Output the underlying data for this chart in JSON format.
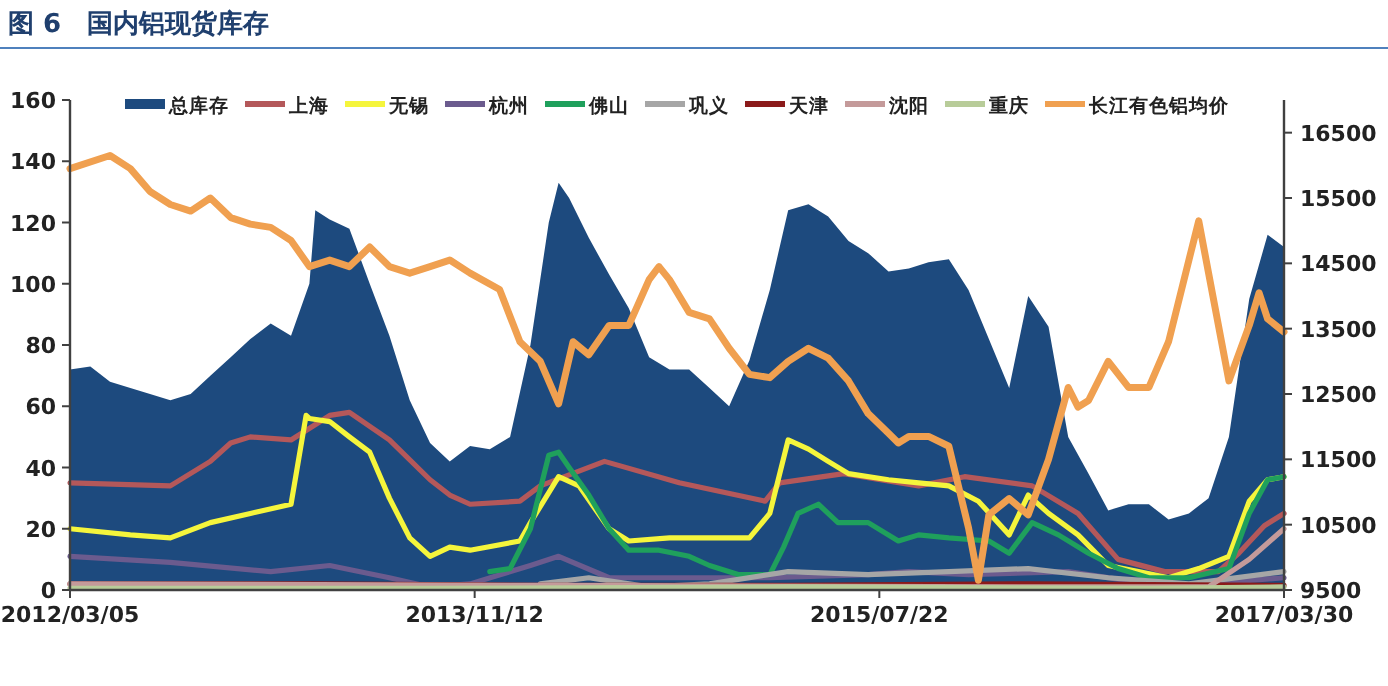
{
  "chart_data": {
    "type": "line",
    "title": "图 6　国内铝现货库存",
    "legend": "top",
    "xlim": [
      "2012-03-05",
      "2017-03-30"
    ],
    "xticks": [
      {
        "value": "2012-03-05",
        "label": "2012/03/05"
      },
      {
        "value": "2013-11-12",
        "label": "2013/11/12"
      },
      {
        "value": "2015-07-22",
        "label": "2015/07/22"
      },
      {
        "value": "2017-03-30",
        "label": "2017/03/30"
      }
    ],
    "ylim": [
      0,
      160
    ],
    "yticks": [
      0,
      20,
      40,
      60,
      80,
      100,
      120,
      140,
      160
    ],
    "y2lim": [
      9500,
      17000
    ],
    "y2ticks": [
      9500,
      10500,
      11500,
      12500,
      13500,
      14500,
      15500,
      16500
    ],
    "series": [
      {
        "name": "总库存",
        "type": "area",
        "color": "#1d4a7e",
        "x": [
          "2012-03-05",
          "2012-04-05",
          "2012-05-05",
          "2012-06-05",
          "2012-07-05",
          "2012-08-05",
          "2012-09-05",
          "2012-10-05",
          "2012-11-05",
          "2012-12-05",
          "2013-01-05",
          "2013-02-05",
          "2013-03-05",
          "2013-03-14",
          "2013-04-05",
          "2013-05-05",
          "2013-06-05",
          "2013-07-05",
          "2013-08-05",
          "2013-09-05",
          "2013-10-05",
          "2013-11-05",
          "2013-12-05",
          "2014-01-05",
          "2014-02-05",
          "2014-03-05",
          "2014-03-20",
          "2014-04-05",
          "2014-05-05",
          "2014-06-05",
          "2014-07-05",
          "2014-08-05",
          "2014-09-05",
          "2014-10-05",
          "2014-11-05",
          "2014-12-05",
          "2015-01-05",
          "2015-02-05",
          "2015-03-05",
          "2015-04-05",
          "2015-05-05",
          "2015-06-05",
          "2015-07-05",
          "2015-08-05",
          "2015-09-05",
          "2015-10-05",
          "2015-11-05",
          "2015-12-05",
          "2016-01-05",
          "2016-02-05",
          "2016-03-05",
          "2016-04-05",
          "2016-05-05",
          "2016-06-05",
          "2016-07-05",
          "2016-08-05",
          "2016-09-05",
          "2016-10-05",
          "2016-11-05",
          "2016-12-05",
          "2017-01-05",
          "2017-02-05",
          "2017-03-05",
          "2017-03-30"
        ],
        "values": [
          72,
          73,
          68,
          66,
          64,
          62,
          64,
          70,
          76,
          82,
          87,
          83,
          100,
          124,
          121,
          118,
          100,
          83,
          62,
          48,
          42,
          47,
          46,
          50,
          80,
          120,
          133,
          128,
          115,
          103,
          92,
          76,
          72,
          72,
          66,
          60,
          75,
          98,
          124,
          126,
          122,
          114,
          110,
          104,
          105,
          107,
          108,
          98,
          82,
          66,
          96,
          86,
          50,
          38,
          26,
          28,
          28,
          23,
          25,
          30,
          50,
          95,
          116,
          112
        ]
      },
      {
        "name": "上海",
        "type": "line",
        "color": "#b4585a",
        "x": [
          "2012-03-05",
          "2012-08-05",
          "2012-10-05",
          "2012-11-05",
          "2012-12-05",
          "2013-02-05",
          "2013-04-05",
          "2013-05-05",
          "2013-07-05",
          "2013-09-05",
          "2013-10-05",
          "2013-11-05",
          "2014-01-20",
          "2014-02-20",
          "2014-03-29",
          "2014-05-29",
          "2014-09-20",
          "2015-01-29",
          "2015-02-20",
          "2015-05-29",
          "2015-09-20",
          "2015-11-29",
          "2016-03-11",
          "2016-05-20",
          "2016-07-20",
          "2016-09-29",
          "2016-12-20",
          "2017-01-20",
          "2017-02-28",
          "2017-03-30"
        ],
        "values": [
          35,
          34,
          42,
          48,
          50,
          49,
          57,
          58,
          49,
          36,
          31,
          28,
          29,
          34,
          37,
          42,
          35,
          29,
          35,
          38,
          34,
          37,
          34,
          25,
          10,
          6,
          6,
          12,
          21,
          25
        ]
      },
      {
        "name": "无锡",
        "type": "line",
        "color": "#f5f53c",
        "x": [
          "2012-03-05",
          "2012-06-05",
          "2012-08-05",
          "2012-10-05",
          "2012-12-05",
          "2013-02-05",
          "2013-02-28",
          "2013-03-05",
          "2013-04-05",
          "2013-05-05",
          "2013-06-05",
          "2013-07-05",
          "2013-08-05",
          "2013-09-05",
          "2013-10-05",
          "2013-11-05",
          "2014-01-20",
          "2014-02-05",
          "2014-03-20",
          "2014-04-20",
          "2014-06-05",
          "2014-07-05",
          "2014-09-05",
          "2014-11-05",
          "2015-01-05",
          "2015-02-05",
          "2015-03-05",
          "2015-04-05",
          "2015-05-05",
          "2015-06-05",
          "2015-08-05",
          "2015-09-20",
          "2015-11-05",
          "2015-12-20",
          "2016-02-05",
          "2016-03-05",
          "2016-04-05",
          "2016-05-20",
          "2016-07-05",
          "2016-08-20",
          "2016-10-05",
          "2016-11-20",
          "2017-01-05",
          "2017-02-05",
          "2017-03-05",
          "2017-03-30"
        ],
        "values": [
          20,
          18,
          17,
          22,
          25,
          28,
          57,
          56,
          55,
          50,
          45,
          30,
          17,
          11,
          14,
          13,
          16,
          22,
          37,
          34,
          20,
          16,
          17,
          17,
          17,
          25,
          49,
          46,
          42,
          38,
          36,
          35,
          34,
          29,
          18,
          31,
          25,
          18,
          8,
          6,
          4,
          7,
          11,
          29,
          36,
          37
        ]
      },
      {
        "name": "杭州",
        "type": "line",
        "color": "#6b5b8e",
        "x": [
          "2012-03-05",
          "2012-08-05",
          "2013-01-05",
          "2013-04-05",
          "2013-07-05",
          "2013-09-05",
          "2013-11-05",
          "2014-02-05",
          "2014-03-20",
          "2014-06-05",
          "2014-09-05",
          "2015-02-05",
          "2015-07-05",
          "2015-09-05",
          "2015-12-05",
          "2016-05-05",
          "2016-10-05",
          "2017-03-30"
        ],
        "values": [
          11,
          9,
          6,
          8,
          4,
          1,
          2,
          8,
          11,
          4,
          4,
          4,
          5,
          6,
          5,
          6,
          1,
          4
        ]
      },
      {
        "name": "佛山",
        "type": "line",
        "color": "#1fa05c",
        "x": [
          "2013-12-05",
          "2014-01-05",
          "2014-02-05",
          "2014-03-05",
          "2014-03-20",
          "2014-04-05",
          "2014-05-05",
          "2014-06-05",
          "2014-07-05",
          "2014-08-20",
          "2014-10-05",
          "2014-11-05",
          "2014-12-20",
          "2015-02-05",
          "2015-02-26",
          "2015-03-20",
          "2015-04-20",
          "2015-05-20",
          "2015-07-05",
          "2015-08-20",
          "2015-09-20",
          "2015-11-05",
          "2016-01-05",
          "2016-02-05",
          "2016-03-11",
          "2016-04-20",
          "2016-06-05",
          "2016-07-20",
          "2016-09-05",
          "2016-11-05",
          "2017-01-05",
          "2017-02-05",
          "2017-03-05",
          "2017-03-30"
        ],
        "values": [
          6,
          7,
          20,
          44,
          45,
          40,
          31,
          20,
          13,
          13,
          11,
          8,
          5,
          5,
          14,
          25,
          28,
          22,
          22,
          16,
          18,
          17,
          16,
          12,
          22,
          18,
          12,
          7,
          4,
          4,
          7,
          25,
          36,
          37
        ]
      },
      {
        "name": "巩义",
        "type": "line",
        "color": "#a6a6a6",
        "x": [
          "2014-02-20",
          "2014-05-05",
          "2014-08-05",
          "2014-11-05",
          "2015-03-05",
          "2015-07-05",
          "2015-11-05",
          "2016-03-05",
          "2016-07-05",
          "2016-11-05",
          "2017-03-30"
        ],
        "values": [
          2,
          4,
          1,
          2,
          6,
          5,
          6,
          7,
          4,
          2,
          6
        ]
      },
      {
        "name": "天津",
        "type": "line",
        "color": "#8b1a1a",
        "x": [
          "2012-03-05",
          "2013-03-05",
          "2014-03-05",
          "2015-03-05",
          "2016-03-05",
          "2017-03-30"
        ],
        "values": [
          2,
          2,
          1.5,
          1.5,
          2,
          1.5
        ]
      },
      {
        "name": "沈阳",
        "type": "line",
        "color": "#c49a9a",
        "x": [
          "2012-03-05",
          "2014-03-05",
          "2016-03-05",
          "2016-12-05",
          "2017-02-05",
          "2017-03-30"
        ],
        "values": [
          2,
          1.5,
          1,
          1,
          10,
          20
        ]
      },
      {
        "name": "重庆",
        "type": "line",
        "color": "#b8cc99",
        "x": [
          "2012-03-05",
          "2013-09-05",
          "2015-03-05",
          "2016-09-05",
          "2017-03-30"
        ],
        "values": [
          0.5,
          0.5,
          1,
          0.5,
          1
        ]
      },
      {
        "name": "长江有色铝均价",
        "type": "line",
        "axis": "y2",
        "color": "#f0a050",
        "x": [
          "2012-03-05",
          "2012-05-05",
          "2012-06-05",
          "2012-07-05",
          "2012-08-05",
          "2012-09-05",
          "2012-10-05",
          "2012-11-05",
          "2012-12-05",
          "2013-01-05",
          "2013-02-05",
          "2013-03-05",
          "2013-04-05",
          "2013-05-05",
          "2013-06-05",
          "2013-07-05",
          "2013-08-05",
          "2013-09-05",
          "2013-10-05",
          "2013-11-05",
          "2013-12-20",
          "2014-01-20",
          "2014-02-20",
          "2014-03-20",
          "2014-04-11",
          "2014-05-05",
          "2014-06-05",
          "2014-07-05",
          "2014-08-05",
          "2014-08-20",
          "2014-09-05",
          "2014-10-05",
          "2014-11-05",
          "2014-12-05",
          "2015-01-05",
          "2015-02-05",
          "2015-03-05",
          "2015-04-05",
          "2015-05-05",
          "2015-06-05",
          "2015-07-05",
          "2015-08-05",
          "2015-08-20",
          "2015-09-05",
          "2015-10-05",
          "2015-11-05",
          "2015-12-05",
          "2015-12-20",
          "2016-01-05",
          "2016-02-05",
          "2016-03-05",
          "2016-04-05",
          "2016-05-05",
          "2016-05-20",
          "2016-06-05",
          "2016-07-05",
          "2016-08-05",
          "2016-09-05",
          "2016-10-05",
          "2016-11-05",
          "2016-11-20",
          "2016-12-05",
          "2017-01-05",
          "2017-02-05",
          "2017-02-20",
          "2017-03-05",
          "2017-03-30"
        ],
        "values": [
          15950,
          16150,
          15950,
          15600,
          15400,
          15300,
          15500,
          15200,
          15100,
          15050,
          14850,
          14450,
          14550,
          14450,
          14750,
          14450,
          14350,
          14450,
          14550,
          14350,
          14100,
          13300,
          13000,
          12350,
          13300,
          13100,
          13550,
          13550,
          14250,
          14450,
          14250,
          13750,
          13650,
          13200,
          12800,
          12750,
          13000,
          13200,
          13050,
          12700,
          12200,
          11900,
          11750,
          11850,
          11850,
          11700,
          10450,
          9650,
          10650,
          10900,
          10650,
          11500,
          12600,
          12300,
          12400,
          13000,
          12600,
          12600,
          13300,
          14550,
          15150,
          14350,
          12700,
          13550,
          14050,
          13650,
          13450
        ]
      }
    ]
  }
}
